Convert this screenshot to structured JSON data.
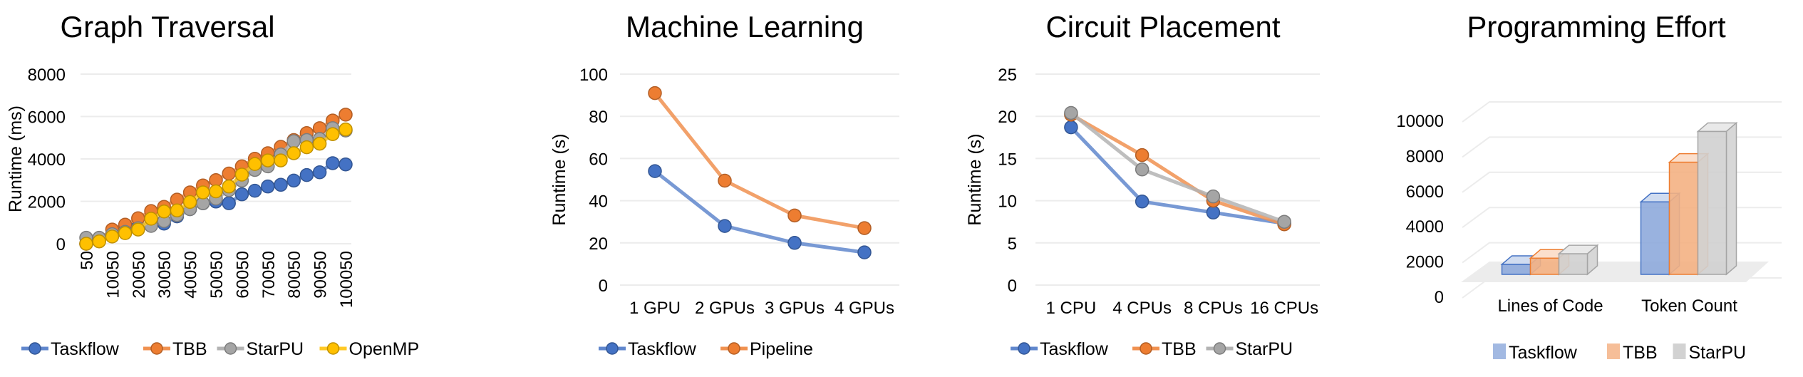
{
  "chart_data": [
    {
      "type": "line",
      "title": "Graph Traversal",
      "xlabel": "",
      "ylabel": "Runtime (ms)",
      "ylim": [
        0,
        8000
      ],
      "yticks": [
        0,
        2000,
        4000,
        6000,
        8000
      ],
      "x": [
        50,
        5050,
        10050,
        15050,
        20050,
        25050,
        30050,
        35050,
        40050,
        45050,
        50050,
        55050,
        60050,
        65050,
        70050,
        75050,
        80050,
        85050,
        90050,
        95050,
        100050
      ],
      "xtick_labels": [
        "50",
        "10050",
        "20050",
        "30050",
        "40050",
        "50050",
        "60050",
        "70050",
        "80050",
        "90050",
        "100050"
      ],
      "grid": true,
      "legend": "bottom",
      "series": [
        {
          "name": "Taskflow",
          "color": "#4472c4",
          "values": [
            0,
            150,
            400,
            650,
            800,
            900,
            950,
            1290,
            1630,
            1910,
            1990,
            1910,
            2330,
            2500,
            2700,
            2780,
            2980,
            3240,
            3370,
            3800,
            3740
          ]
        },
        {
          "name": "TBB",
          "color": "#ed7d31",
          "values": [
            0,
            200,
            670,
            900,
            1200,
            1540,
            1740,
            2080,
            2420,
            2750,
            3000,
            3310,
            3650,
            4010,
            4270,
            4570,
            4890,
            5220,
            5450,
            5810,
            6090
          ]
        },
        {
          "name": "StarPU",
          "color": "#a5a5a5",
          "values": [
            280,
            280,
            450,
            560,
            730,
            840,
            1070,
            1350,
            1630,
            1910,
            2130,
            2530,
            2980,
            3480,
            3650,
            4210,
            4830,
            4890,
            4940,
            5450,
            5340
          ]
        },
        {
          "name": "OpenMP",
          "color": "#ffc000",
          "values": [
            0,
            110,
            340,
            500,
            670,
            1180,
            1520,
            1570,
            1970,
            2420,
            2470,
            2700,
            3260,
            3760,
            3930,
            3930,
            4270,
            4550,
            4720,
            5170,
            5390
          ]
        }
      ]
    },
    {
      "type": "line",
      "title": "Machine Learning",
      "xlabel": "",
      "ylabel": "Runtime (s)",
      "ylim": [
        0,
        100
      ],
      "yticks": [
        0,
        20,
        40,
        60,
        80,
        100
      ],
      "categories": [
        "1 GPU",
        "2 GPUs",
        "3 GPUs",
        "4 GPUs"
      ],
      "grid": true,
      "legend": "bottom",
      "series": [
        {
          "name": "Taskflow",
          "color": "#4472c4",
          "values": [
            54,
            28,
            20,
            15.5
          ]
        },
        {
          "name": "Pipeline",
          "color": "#ed7d31",
          "values": [
            91,
            49.5,
            33,
            27
          ]
        }
      ]
    },
    {
      "type": "line",
      "title": "Circuit Placement",
      "xlabel": "",
      "ylabel": "Runtime (s)",
      "ylim": [
        0,
        25
      ],
      "yticks": [
        0,
        5,
        10,
        15,
        20,
        25
      ],
      "categories": [
        "1 CPU",
        "4 CPUs",
        "8 CPUs",
        "16 CPUs"
      ],
      "grid": true,
      "legend": "bottom",
      "series": [
        {
          "name": "Taskflow",
          "color": "#4472c4",
          "values": [
            18.7,
            9.9,
            8.6,
            7.3
          ]
        },
        {
          "name": "TBB",
          "color": "#ed7d31",
          "values": [
            20.2,
            15.4,
            10.0,
            7.2
          ]
        },
        {
          "name": "StarPU",
          "color": "#a5a5a5",
          "values": [
            20.4,
            13.7,
            10.5,
            7.5
          ]
        }
      ]
    },
    {
      "type": "bar",
      "style": "3d-clustered",
      "title": "Programming Effort",
      "xlabel": "",
      "ylabel": "",
      "ylim": [
        0,
        10000
      ],
      "yticks": [
        0,
        2000,
        4000,
        6000,
        8000,
        10000
      ],
      "categories": [
        "Lines of Code",
        "Token Count"
      ],
      "grid": true,
      "legend": "bottom",
      "series": [
        {
          "name": "Taskflow",
          "color": "#4472c4",
          "fill": "#8eaadb",
          "values": [
            650,
            4200
          ]
        },
        {
          "name": "TBB",
          "color": "#ed7d31",
          "fill": "#f4b183",
          "values": [
            1000,
            6450
          ]
        },
        {
          "name": "StarPU",
          "color": "#a5a5a5",
          "fill": "#d0d0d0",
          "values": [
            1250,
            8200
          ]
        }
      ]
    }
  ]
}
